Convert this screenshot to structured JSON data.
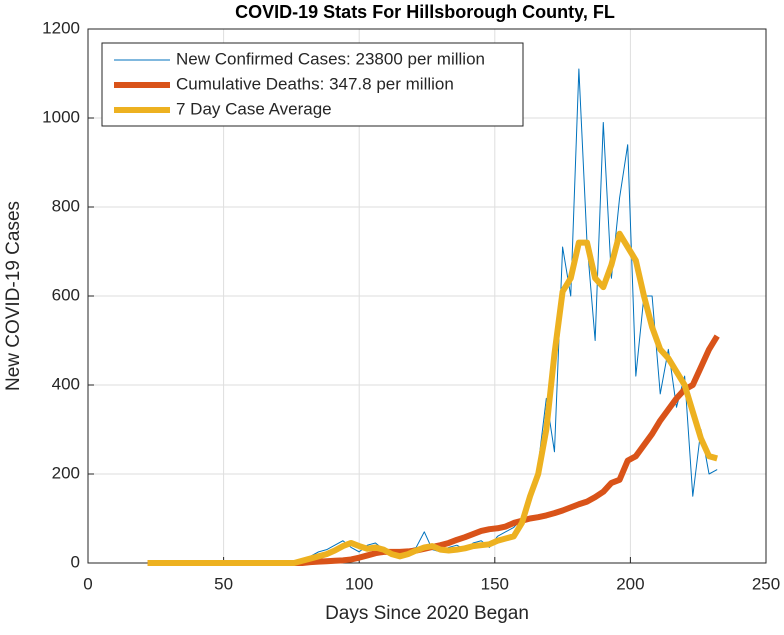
{
  "chart_data": {
    "type": "line",
    "title": "COVID-19 Stats For Hillsborough County, FL",
    "xlabel": "Days Since 2020 Began",
    "ylabel": "New COVID-19 Cases",
    "x": [
      22,
      25,
      28,
      31,
      34,
      37,
      40,
      43,
      46,
      49,
      52,
      55,
      58,
      61,
      64,
      67,
      70,
      73,
      76,
      79,
      82,
      85,
      88,
      91,
      94,
      97,
      100,
      103,
      106,
      109,
      112,
      115,
      118,
      121,
      124,
      127,
      130,
      133,
      136,
      139,
      142,
      145,
      148,
      151,
      154,
      157,
      160,
      163,
      166,
      169,
      172,
      175,
      178,
      181,
      184,
      187,
      190,
      193,
      196,
      199,
      202,
      205,
      208,
      211,
      214,
      217,
      220,
      223,
      226,
      229,
      232
    ],
    "series": [
      {
        "name": "New Confirmed Cases: 23800 per million",
        "color": "#0072BD",
        "values": [
          0,
          0,
          0,
          0,
          0,
          0,
          0,
          0,
          0,
          0,
          0,
          0,
          0,
          0,
          0,
          0,
          0,
          0,
          0,
          10,
          15,
          25,
          30,
          40,
          50,
          35,
          25,
          40,
          45,
          30,
          20,
          25,
          30,
          35,
          70,
          30,
          25,
          35,
          40,
          30,
          45,
          50,
          35,
          60,
          70,
          80,
          100,
          150,
          220,
          370,
          250,
          710,
          600,
          1110,
          720,
          500,
          990,
          640,
          820,
          940,
          420,
          600,
          600,
          380,
          480,
          350,
          420,
          150,
          300,
          200,
          210
        ]
      },
      {
        "name": "Cumulative Deaths: 347.8 per million",
        "color": "#D95319",
        "values": [
          0,
          0,
          0,
          0,
          0,
          0,
          0,
          0,
          0,
          0,
          0,
          0,
          0,
          0,
          0,
          0,
          0,
          0,
          0,
          0,
          2,
          3,
          4,
          5,
          6,
          8,
          12,
          17,
          22,
          25,
          25,
          25,
          26,
          28,
          32,
          36,
          40,
          45,
          52,
          58,
          65,
          72,
          76,
          78,
          82,
          90,
          95,
          100,
          103,
          107,
          112,
          118,
          125,
          132,
          138,
          148,
          160,
          180,
          187,
          230,
          240,
          265,
          290,
          320,
          345,
          370,
          390,
          400,
          440,
          480,
          510
        ]
      },
      {
        "name": "7 Day Case Average",
        "color": "#EDB120",
        "values": [
          0,
          0,
          0,
          0,
          0,
          0,
          0,
          0,
          0,
          0,
          0,
          0,
          0,
          0,
          0,
          0,
          0,
          0,
          0,
          5,
          10,
          15,
          20,
          28,
          38,
          45,
          38,
          32,
          35,
          30,
          20,
          15,
          20,
          28,
          35,
          38,
          30,
          28,
          30,
          33,
          38,
          40,
          42,
          50,
          55,
          60,
          90,
          150,
          200,
          300,
          470,
          610,
          640,
          720,
          720,
          640,
          620,
          670,
          740,
          710,
          680,
          600,
          530,
          480,
          460,
          430,
          400,
          340,
          280,
          240,
          235
        ]
      }
    ],
    "xlim": [
      0,
      250
    ],
    "xticks": [
      0,
      50,
      100,
      150,
      200,
      250
    ],
    "ylim": [
      0,
      1200
    ],
    "yticks": [
      0,
      200,
      400,
      600,
      800,
      1000,
      1200
    ],
    "grid": true,
    "legend": "upper-left"
  }
}
